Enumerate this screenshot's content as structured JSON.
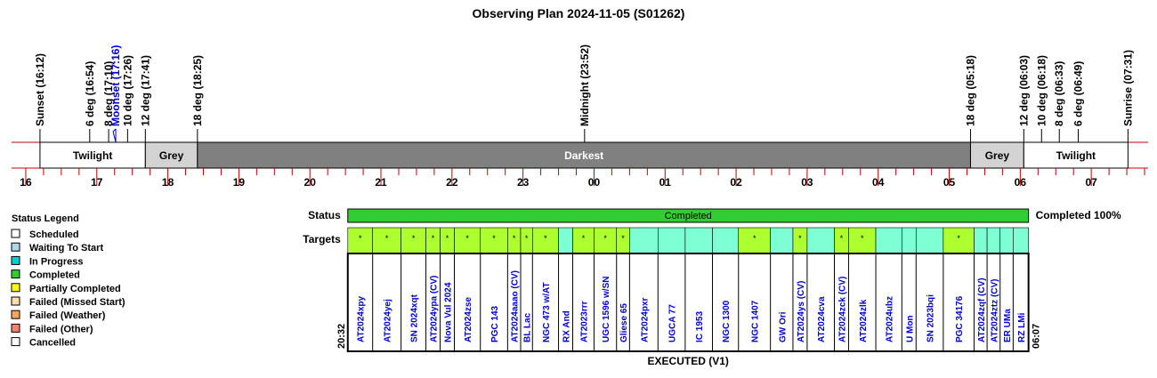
{
  "title": "Observing Plan 2024-11-05 (S01262)",
  "colors": {
    "twilight": "#ffffff",
    "grey": "#d3d3d3",
    "darkest": "#808080",
    "border_red": "#c00000",
    "completed": "#32cd32",
    "target_fill_a": "#adff2f",
    "target_fill_b": "#7fffd4",
    "target_text": "#0000cc",
    "moon_text": "#0000cc"
  },
  "time_axis": {
    "start_hour": 15.8,
    "end_hour": 31.8,
    "hour_labels": [
      "16",
      "17",
      "18",
      "19",
      "20",
      "21",
      "22",
      "23",
      "00",
      "01",
      "02",
      "03",
      "04",
      "05",
      "06",
      "07"
    ]
  },
  "events": [
    {
      "label": "Sunset (16:12)",
      "hour": 16.2,
      "moon": false
    },
    {
      "label": "6 deg (16:54)",
      "hour": 16.9,
      "moon": false
    },
    {
      "label": "8 deg (17:10)",
      "hour": 17.1667,
      "moon": false
    },
    {
      "label": "Moonset (17:16)",
      "hour": 17.2667,
      "moon": true
    },
    {
      "label": "10 deg (17:26)",
      "hour": 17.4333,
      "moon": false
    },
    {
      "label": "12 deg (17:41)",
      "hour": 17.6833,
      "moon": false
    },
    {
      "label": "18 deg (18:25)",
      "hour": 18.4167,
      "moon": false
    },
    {
      "label": "Midnight (23:52)",
      "hour": 23.8667,
      "moon": false
    },
    {
      "label": "18 deg (05:18)",
      "hour": 29.3,
      "moon": false
    },
    {
      "label": "12 deg (06:03)",
      "hour": 30.05,
      "moon": false
    },
    {
      "label": "10 deg (06:18)",
      "hour": 30.3,
      "moon": false
    },
    {
      "label": "8 deg (06:33)",
      "hour": 30.55,
      "moon": false
    },
    {
      "label": "6 deg (06:49)",
      "hour": 30.8167,
      "moon": false
    },
    {
      "label": "Sunrise (07:31)",
      "hour": 31.5167,
      "moon": false
    }
  ],
  "bands": [
    {
      "label": "Twilight",
      "start": 16.2,
      "end": 17.6833,
      "fill": "twilight"
    },
    {
      "label": "Grey",
      "start": 17.6833,
      "end": 18.4167,
      "fill": "grey"
    },
    {
      "label": "Darkest",
      "start": 18.4167,
      "end": 29.3,
      "fill": "darkest"
    },
    {
      "label": "Grey",
      "start": 29.3,
      "end": 30.05,
      "fill": "grey"
    },
    {
      "label": "Twilight",
      "start": 30.05,
      "end": 31.5167,
      "fill": "twilight"
    }
  ],
  "legend": {
    "title": "Status Legend",
    "items": [
      {
        "label": "Scheduled",
        "color": "#ffffff"
      },
      {
        "label": "Waiting To Start",
        "color": "#add8e6"
      },
      {
        "label": "In Progress",
        "color": "#00ced1"
      },
      {
        "label": "Completed",
        "color": "#32cd32"
      },
      {
        "label": "Partially Completed",
        "color": "#ffff00"
      },
      {
        "label": "Failed (Missed Start)",
        "color": "#ffdead"
      },
      {
        "label": "Failed (Weather)",
        "color": "#f4a460"
      },
      {
        "label": "Failed (Other)",
        "color": "#fa8072"
      },
      {
        "label": "Cancelled",
        "color": "#ffffff"
      }
    ]
  },
  "status": {
    "row_label": "Status",
    "bar_label": "Completed",
    "summary": "Completed 100%"
  },
  "targets_label": "Targets",
  "start_time": "20:32",
  "end_time": "06:07",
  "footer": "EXECUTED (V1)",
  "plan": {
    "start_hour": 20.5333,
    "end_hour": 30.1167
  },
  "targets": [
    {
      "name": "AT2024xpy",
      "start": 20.5333,
      "end": 20.8833,
      "fill": "a",
      "mark": true
    },
    {
      "name": "AT2024yej",
      "start": 20.8833,
      "end": 21.2833,
      "fill": "a",
      "mark": true
    },
    {
      "name": "SN 2024xqt",
      "start": 21.2833,
      "end": 21.6333,
      "fill": "a",
      "mark": true
    },
    {
      "name": "AT2024ypa (CV)",
      "start": 21.6333,
      "end": 21.8333,
      "fill": "a",
      "mark": true
    },
    {
      "name": "Nova Vul 2024",
      "start": 21.8333,
      "end": 22.0333,
      "fill": "a",
      "mark": true
    },
    {
      "name": "AT2024zse",
      "start": 22.0333,
      "end": 22.4,
      "fill": "a",
      "mark": true
    },
    {
      "name": "PGC 143",
      "start": 22.4,
      "end": 22.7833,
      "fill": "a",
      "mark": true
    },
    {
      "name": "AT2024aaao (CV)",
      "start": 22.7833,
      "end": 22.9667,
      "fill": "a",
      "mark": true
    },
    {
      "name": "BL Lac",
      "start": 22.9667,
      "end": 23.1333,
      "fill": "a",
      "mark": true
    },
    {
      "name": "NGC 473 w/AT",
      "start": 23.1333,
      "end": 23.5,
      "fill": "a",
      "mark": true
    },
    {
      "name": "RX And",
      "start": 23.5,
      "end": 23.7,
      "fill": "b",
      "mark": false
    },
    {
      "name": "AT2023rrr",
      "start": 23.7,
      "end": 24.0,
      "fill": "a",
      "mark": true
    },
    {
      "name": "UGC 1596 w/SN",
      "start": 24.0,
      "end": 24.3167,
      "fill": "a",
      "mark": true
    },
    {
      "name": "Gliese 65",
      "start": 24.3167,
      "end": 24.5,
      "fill": "a",
      "mark": true
    },
    {
      "name": "AT2024pxr",
      "start": 24.5,
      "end": 24.9,
      "fill": "b",
      "mark": false
    },
    {
      "name": "UGCA 77",
      "start": 24.9,
      "end": 25.2833,
      "fill": "b",
      "mark": false
    },
    {
      "name": "IC 1953",
      "start": 25.2833,
      "end": 25.6667,
      "fill": "b",
      "mark": false
    },
    {
      "name": "NGC 1300",
      "start": 25.6667,
      "end": 26.0333,
      "fill": "b",
      "mark": false
    },
    {
      "name": "NGC 1407",
      "start": 26.0333,
      "end": 26.4833,
      "fill": "a",
      "mark": true
    },
    {
      "name": "GW Ori",
      "start": 26.4833,
      "end": 26.8,
      "fill": "b",
      "mark": false
    },
    {
      "name": "AT2024ys (CV)",
      "start": 26.8,
      "end": 27.0,
      "fill": "a",
      "mark": true
    },
    {
      "name": "AT2024cva",
      "start": 27.0,
      "end": 27.3833,
      "fill": "b",
      "mark": false
    },
    {
      "name": "AT2024zck (CV)",
      "start": 27.3833,
      "end": 27.5833,
      "fill": "a",
      "mark": true
    },
    {
      "name": "AT2024zlk",
      "start": 27.5833,
      "end": 27.9667,
      "fill": "a",
      "mark": true
    },
    {
      "name": "AT2024ubz",
      "start": 27.9667,
      "end": 28.3333,
      "fill": "b",
      "mark": false
    },
    {
      "name": "U Mon",
      "start": 28.3333,
      "end": 28.5333,
      "fill": "b",
      "mark": false
    },
    {
      "name": "SN 2023bqi",
      "start": 28.5333,
      "end": 28.9167,
      "fill": "b",
      "mark": false
    },
    {
      "name": "PGC 34176",
      "start": 28.9167,
      "end": 29.35,
      "fill": "a",
      "mark": true
    },
    {
      "name": "AT2024zqf (CV)",
      "start": 29.35,
      "end": 29.5333,
      "fill": "b",
      "mark": false
    },
    {
      "name": "AT2024ztz (CV)",
      "start": 29.5333,
      "end": 29.7167,
      "fill": "b",
      "mark": false
    },
    {
      "name": "ER UMa",
      "start": 29.7167,
      "end": 29.9,
      "fill": "b",
      "mark": false
    },
    {
      "name": "RZ LMi",
      "start": 29.9,
      "end": 30.1167,
      "fill": "b",
      "mark": false
    }
  ],
  "target_mark_glyph": "*"
}
